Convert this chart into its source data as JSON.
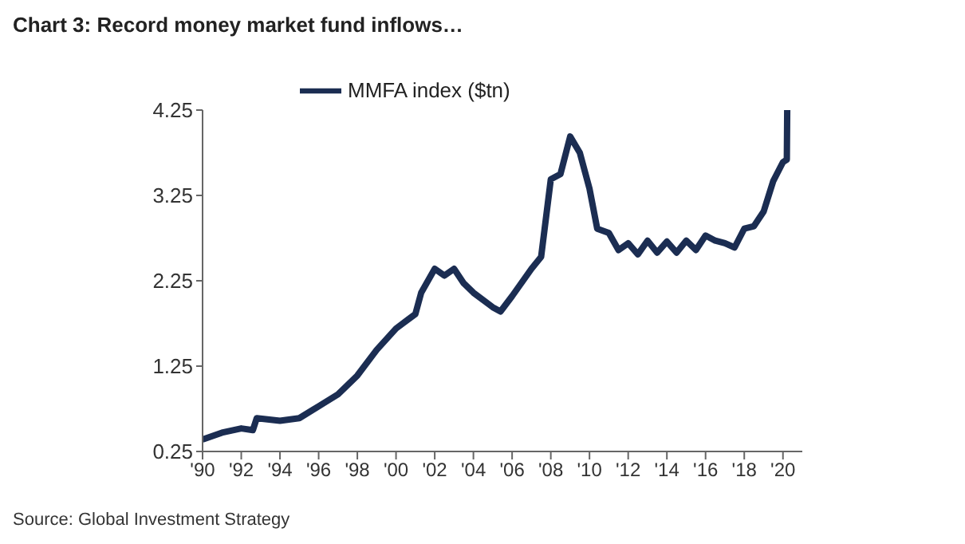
{
  "chart_data": {
    "type": "line",
    "title": "Chart 3: Record money market fund inflows…",
    "annotations": [
      "Source: Global Investment Strategy"
    ],
    "x": [
      1990,
      1991,
      1992,
      1992.6,
      1992.8,
      1994,
      1995,
      1996,
      1997,
      1998,
      1999,
      2000,
      2001,
      2001.3,
      2002,
      2002.5,
      2003,
      2003.5,
      2004,
      2005,
      2005.4,
      2006,
      2007,
      2007.5,
      2008,
      2008.5,
      2009,
      2009.5,
      2010,
      2010.4,
      2011,
      2011.5,
      2012,
      2012.5,
      2013,
      2013.5,
      2014,
      2014.5,
      2015,
      2015.5,
      2016,
      2016.5,
      2017,
      2017.5,
      2018,
      2018.5,
      2019,
      2019.5,
      2020,
      2020.2,
      2020.22
    ],
    "series": [
      {
        "name": "MMFA index ($tn)",
        "color": "#1b2d52",
        "values": [
          0.39,
          0.47,
          0.52,
          0.5,
          0.64,
          0.61,
          0.64,
          0.78,
          0.92,
          1.14,
          1.44,
          1.69,
          1.86,
          2.11,
          2.39,
          2.31,
          2.39,
          2.22,
          2.11,
          1.94,
          1.89,
          2.07,
          2.39,
          2.53,
          3.44,
          3.5,
          3.94,
          3.75,
          3.33,
          2.86,
          2.81,
          2.61,
          2.69,
          2.56,
          2.72,
          2.58,
          2.71,
          2.58,
          2.72,
          2.61,
          2.78,
          2.72,
          2.69,
          2.64,
          2.86,
          2.89,
          3.06,
          3.42,
          3.64,
          3.67,
          4.25
        ]
      }
    ],
    "xlim": [
      1990,
      2021
    ],
    "xticks": [
      {
        "value": 1990,
        "label": "'90"
      },
      {
        "value": 1992,
        "label": "'92"
      },
      {
        "value": 1994,
        "label": "'94"
      },
      {
        "value": 1996,
        "label": "'96"
      },
      {
        "value": 1998,
        "label": "'98"
      },
      {
        "value": 2000,
        "label": "'00"
      },
      {
        "value": 2002,
        "label": "'02"
      },
      {
        "value": 2004,
        "label": "'04"
      },
      {
        "value": 2006,
        "label": "'06"
      },
      {
        "value": 2008,
        "label": "'08"
      },
      {
        "value": 2010,
        "label": "'10"
      },
      {
        "value": 2012,
        "label": "'12"
      },
      {
        "value": 2014,
        "label": "'14"
      },
      {
        "value": 2016,
        "label": "'16"
      },
      {
        "value": 2018,
        "label": "'18"
      },
      {
        "value": 2020,
        "label": "'20"
      }
    ],
    "ylim": [
      0.25,
      4.25
    ],
    "yticks": [
      0.25,
      1.25,
      2.25,
      3.25,
      4.25
    ],
    "grid": false,
    "legend": "top",
    "marker": "none",
    "line_style": "solid"
  }
}
